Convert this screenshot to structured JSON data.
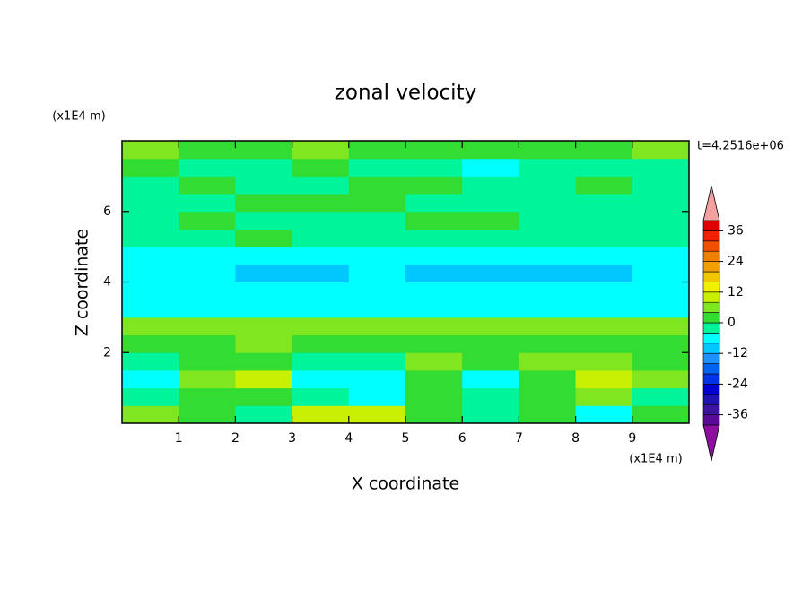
{
  "chart_data": {
    "type": "contour",
    "title": "zonal velocity",
    "x_label": "X coordinate",
    "y_label": "Z coordinate",
    "x_unit": "(x1E4 m)",
    "y_unit": "(x1E4 m)",
    "annotation": "t=4.2516e+06",
    "xlim": [
      0,
      10
    ],
    "ylim": [
      0,
      8
    ],
    "xticks": [
      1,
      2,
      3,
      4,
      5,
      6,
      7,
      8,
      9
    ],
    "yticks": [
      2,
      4,
      6
    ],
    "x": [
      0.5,
      1.5,
      2.5,
      3.5,
      4.5,
      5.5,
      6.5,
      7.5,
      8.5,
      9.5
    ],
    "y": [
      0.25,
      0.75,
      1.25,
      1.75,
      2.25,
      2.75,
      3.25,
      3.75,
      4.25,
      4.75,
      5.25,
      5.75,
      6.25,
      6.75,
      7.25,
      7.75
    ],
    "z": [
      [
        6,
        2,
        -2,
        10,
        8,
        2,
        -2,
        2,
        -6,
        2
      ],
      [
        -2,
        2,
        2,
        -2,
        -6,
        2,
        -2,
        2,
        6,
        -2
      ],
      [
        -6,
        6,
        8,
        -6,
        -6,
        2,
        -6,
        2,
        10,
        6
      ],
      [
        -2,
        2,
        2,
        -2,
        -2,
        6,
        2,
        6,
        6,
        2
      ],
      [
        2,
        2,
        6,
        2,
        2,
        2,
        2,
        2,
        2,
        2
      ],
      [
        6,
        6,
        6,
        6,
        6,
        6,
        6,
        6,
        6,
        6
      ],
      [
        -6,
        -6,
        -6,
        -6,
        -6,
        -6,
        -6,
        -6,
        -6,
        -6
      ],
      [
        -6,
        -6,
        -6,
        -6,
        -6,
        -6,
        -6,
        -6,
        -6,
        -6
      ],
      [
        -6,
        -6,
        -10,
        -10,
        -6,
        -10,
        -10,
        -10,
        -10,
        -6
      ],
      [
        -6,
        -6,
        -6,
        -6,
        -6,
        -6,
        -6,
        -6,
        -6,
        -6
      ],
      [
        -2,
        -2,
        2,
        -2,
        -2,
        -2,
        -2,
        -2,
        -2,
        -2
      ],
      [
        -2,
        2,
        -2,
        -2,
        -2,
        2,
        2,
        -2,
        -2,
        -2
      ],
      [
        -2,
        -2,
        2,
        2,
        2,
        -2,
        -2,
        -2,
        -2,
        -2
      ],
      [
        -2,
        2,
        -2,
        -2,
        2,
        2,
        -2,
        -2,
        2,
        -2
      ],
      [
        2,
        -2,
        -2,
        2,
        -2,
        -2,
        -6,
        -2,
        -2,
        -2
      ],
      [
        6,
        2,
        2,
        6,
        2,
        2,
        2,
        2,
        2,
        6
      ]
    ],
    "colorbar": {
      "levels": [
        -40,
        -36,
        -32,
        -28,
        -24,
        -20,
        -16,
        -12,
        -8,
        -4,
        0,
        4,
        8,
        12,
        16,
        20,
        24,
        28,
        32,
        36,
        40
      ],
      "colors": [
        "#5a0a96",
        "#3c14a0",
        "#1e14b4",
        "#0000d2",
        "#0032e6",
        "#0064f0",
        "#1e90ff",
        "#00c8ff",
        "#00ffff",
        "#00f59a",
        "#32dc32",
        "#80e620",
        "#c8f000",
        "#f0f000",
        "#f0c800",
        "#f0a000",
        "#f08000",
        "#f05000",
        "#f02000",
        "#e00000"
      ],
      "under_color": "#8c0fa0",
      "over_color": "#f4a0a0",
      "ticks": [
        -36,
        -24,
        -12,
        0,
        12,
        24,
        36
      ]
    }
  }
}
